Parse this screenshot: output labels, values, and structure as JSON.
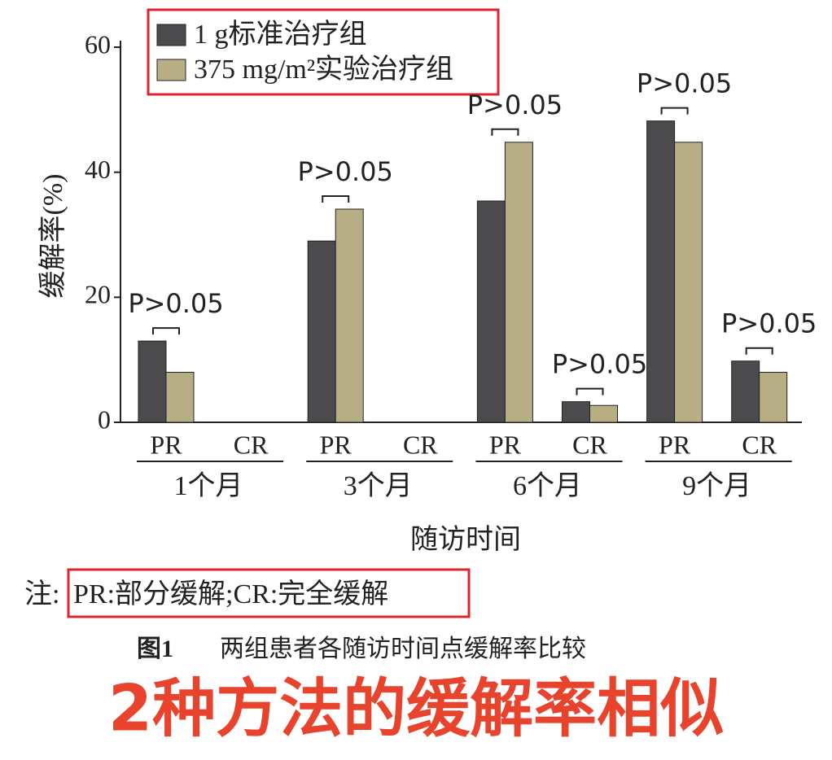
{
  "chart_data": {
    "type": "bar",
    "y_label": "缓解率(%)",
    "x_label": "随访时间",
    "categories": [
      "PR",
      "CR",
      "PR",
      "CR",
      "PR",
      "CR",
      "PR",
      "CR"
    ],
    "groups": [
      "1个月",
      "3个月",
      "6个月",
      "9个月"
    ],
    "series": [
      {
        "name": "1 g标准治疗组",
        "color": "#4b4b4d",
        "values": [
          13,
          0,
          29,
          0,
          35.4,
          3.3,
          48.2,
          9.8
        ]
      },
      {
        "name": "375 mg/m²实验治疗组",
        "color": "#b8ae86",
        "values": [
          8,
          0,
          34.1,
          0,
          44.8,
          2.7,
          44.8,
          8
        ]
      }
    ],
    "annotations": [
      "P>0.05",
      "P>0.05",
      "P>0.05",
      "P>0.05",
      "P>0.05",
      "P>0.05"
    ],
    "ylim": [
      0,
      60
    ],
    "yticks": [
      0,
      20,
      40,
      60
    ],
    "note_prefix": "注:",
    "note": "PR:部分缓解;CR:完全缓解",
    "figure_label": "图1",
    "caption": "两组患者各随访时间点缓解率比较",
    "headline": "2种方法的缓解率相似"
  }
}
